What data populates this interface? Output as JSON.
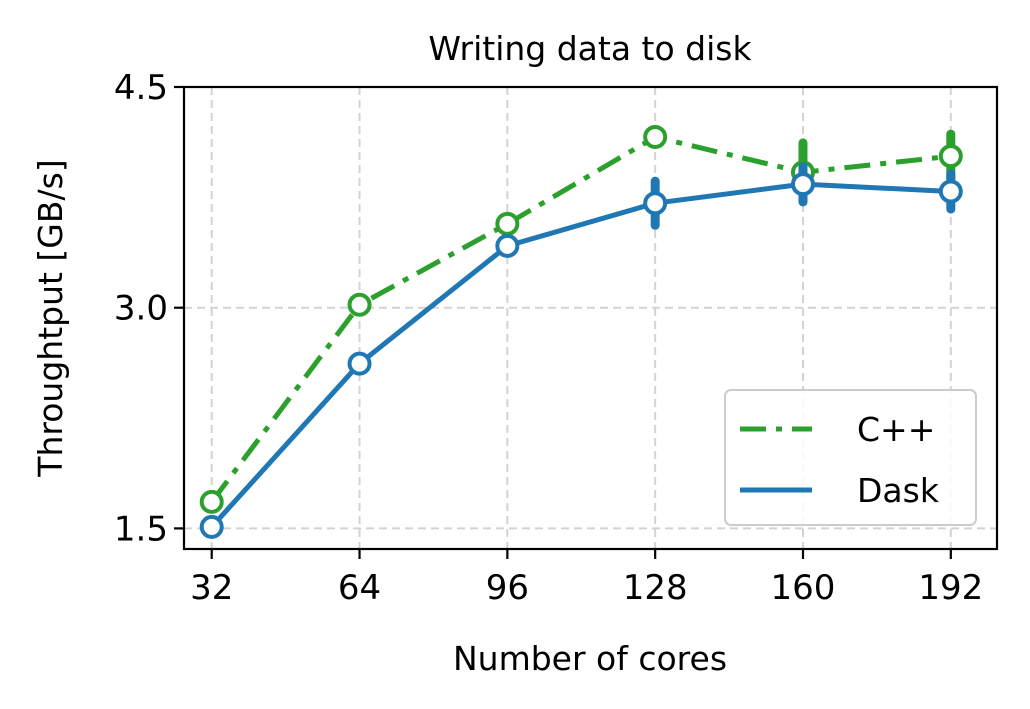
{
  "chart_data": {
    "type": "line",
    "title": "Writing data to disk",
    "xlabel": "Number of cores",
    "ylabel": "Throughtput [GB/s]",
    "categories": [
      32,
      64,
      96,
      128,
      160,
      192
    ],
    "xlim": [
      26,
      202
    ],
    "ylim": [
      1.36,
      4.5
    ],
    "yticks": [
      1.5,
      3.0,
      4.5
    ],
    "ytick_labels": [
      "1.5",
      "3.0",
      "4.5"
    ],
    "xtick_labels": [
      "32",
      "64",
      "96",
      "128",
      "160",
      "192"
    ],
    "grid": true,
    "legend_position": "bottom-right",
    "series": [
      {
        "name": "C++",
        "color": "#2ca02c",
        "linestyle": "dashdot",
        "values": [
          1.68,
          3.02,
          3.57,
          4.16,
          3.92,
          4.03
        ],
        "errors": [
          0.0,
          0.0,
          0.0,
          0.0,
          0.2,
          0.15
        ]
      },
      {
        "name": "Dask",
        "color": "#1f77b4",
        "linestyle": "solid",
        "values": [
          1.51,
          2.62,
          3.42,
          3.71,
          3.84,
          3.79
        ],
        "errors": [
          0.0,
          0.0,
          0.0,
          0.15,
          0.12,
          0.12
        ]
      }
    ]
  }
}
